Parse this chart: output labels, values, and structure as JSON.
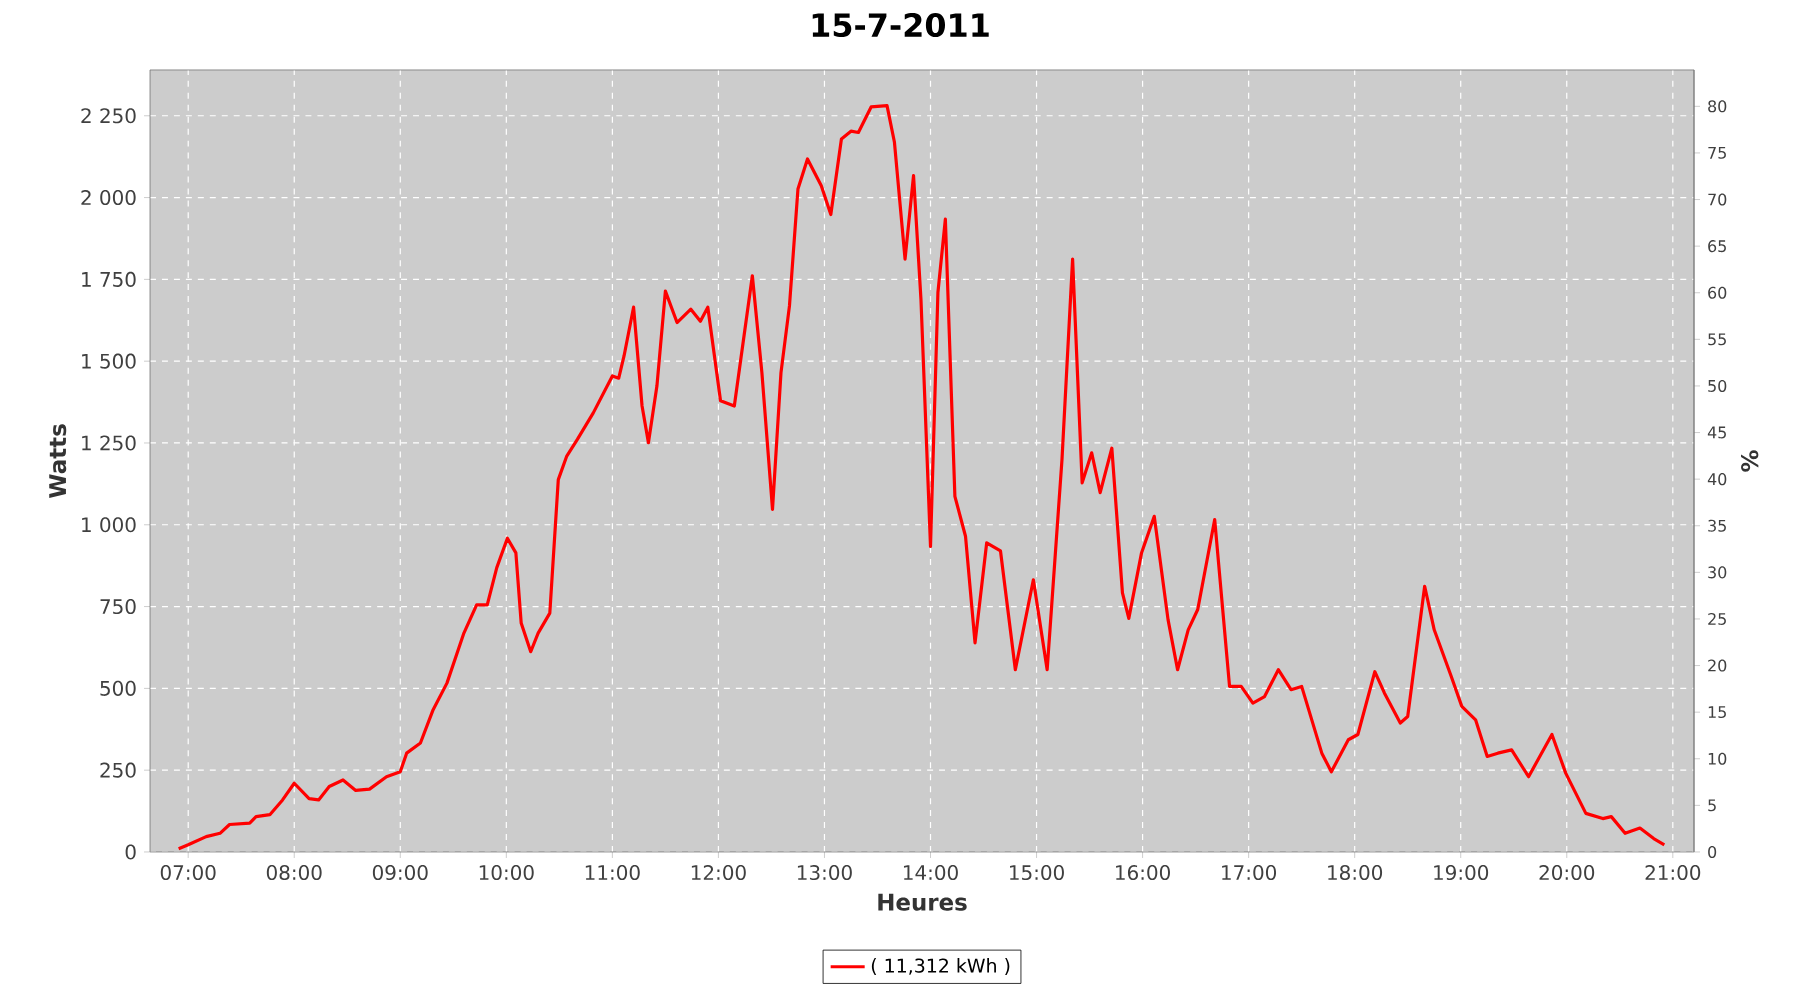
{
  "chart_data": {
    "type": "line",
    "title": "15-7-2011",
    "xlabel": "Heures",
    "ylabel": "Watts",
    "y2label": "%",
    "x": [
      6.91,
      7.0,
      7.17,
      7.3,
      7.39,
      7.58,
      7.64,
      7.77,
      7.89,
      8.0,
      8.14,
      8.23,
      8.33,
      8.46,
      8.58,
      8.71,
      8.87,
      9.0,
      9.06,
      9.19,
      9.31,
      9.44,
      9.6,
      9.72,
      9.82,
      9.91,
      10.01,
      10.09,
      10.14,
      10.23,
      10.3,
      10.41,
      10.49,
      10.57,
      10.67,
      10.82,
      11.0,
      11.06,
      11.11,
      11.2,
      11.28,
      11.34,
      11.42,
      11.5,
      11.61,
      11.74,
      11.83,
      11.9,
      12.02,
      12.15,
      12.32,
      12.41,
      12.51,
      12.59,
      12.67,
      12.75,
      12.84,
      12.97,
      13.06,
      13.16,
      13.25,
      13.32,
      13.44,
      13.59,
      13.66,
      13.76,
      13.84,
      13.91,
      14.0,
      14.07,
      14.14,
      14.23,
      14.33,
      14.42,
      14.53,
      14.66,
      14.8,
      14.97,
      15.1,
      15.24,
      15.34,
      15.43,
      15.52,
      15.6,
      15.71,
      15.81,
      15.87,
      15.99,
      16.11,
      16.24,
      16.33,
      16.43,
      16.52,
      16.68,
      16.82,
      16.93,
      17.04,
      17.15,
      17.28,
      17.4,
      17.5,
      17.69,
      17.78,
      17.94,
      18.03,
      18.19,
      18.28,
      18.43,
      18.5,
      18.66,
      18.75,
      18.91,
      19.01,
      19.14,
      19.25,
      19.35,
      19.48,
      19.64,
      19.86,
      19.99,
      20.18,
      20.34,
      20.42,
      20.55,
      20.69,
      20.82,
      20.92
    ],
    "series": [
      {
        "name": "( 11,312 kWh )",
        "color": "#ff0000",
        "values": [
          10,
          22,
          47,
          57,
          84,
          88,
          108,
          114,
          159,
          210,
          163,
          159,
          200,
          220,
          188,
          192,
          230,
          245,
          302,
          333,
          435,
          516,
          669,
          755,
          755,
          869,
          959,
          914,
          700,
          612,
          669,
          730,
          1138,
          1210,
          1261,
          1342,
          1455,
          1448,
          1516,
          1665,
          1363,
          1251,
          1424,
          1714,
          1618,
          1659,
          1622,
          1665,
          1379,
          1363,
          1761,
          1465,
          1047,
          1465,
          1669,
          2026,
          2118,
          2036,
          1948,
          2179,
          2203,
          2199,
          2277,
          2281,
          2169,
          1812,
          2067,
          1689,
          934,
          1710,
          1934,
          1087,
          965,
          639,
          945,
          920,
          557,
          832,
          557,
          1200,
          1812,
          1128,
          1220,
          1098,
          1234,
          792,
          714,
          914,
          1026,
          710,
          557,
          679,
          741,
          1016,
          506,
          506,
          455,
          475,
          557,
          496,
          506,
          302,
          245,
          343,
          359,
          551,
          486,
          394,
          414,
          812,
          679,
          537,
          445,
          404,
          292,
          302,
          312,
          230,
          359,
          241,
          118,
          102,
          108,
          57,
          73,
          41,
          22
        ]
      }
    ],
    "xlim": [
      6.64,
      21.2
    ],
    "ylim": [
      0,
      2390
    ],
    "y2lim": [
      0,
      83.9
    ],
    "xticks": [
      {
        "value": 7,
        "label": "07:00"
      },
      {
        "value": 8,
        "label": "08:00"
      },
      {
        "value": 9,
        "label": "09:00"
      },
      {
        "value": 10,
        "label": "10:00"
      },
      {
        "value": 11,
        "label": "11:00"
      },
      {
        "value": 12,
        "label": "12:00"
      },
      {
        "value": 13,
        "label": "13:00"
      },
      {
        "value": 14,
        "label": "14:00"
      },
      {
        "value": 15,
        "label": "15:00"
      },
      {
        "value": 16,
        "label": "16:00"
      },
      {
        "value": 17,
        "label": "17:00"
      },
      {
        "value": 18,
        "label": "18:00"
      },
      {
        "value": 19,
        "label": "19:00"
      },
      {
        "value": 20,
        "label": "20:00"
      },
      {
        "value": 21,
        "label": "21:00"
      }
    ],
    "yticks": [
      0,
      250,
      500,
      750,
      {
        "value": 1000,
        "label": "1 000"
      },
      {
        "value": 1250,
        "label": "1 250"
      },
      {
        "value": 1500,
        "label": "1 500"
      },
      {
        "value": 1750,
        "label": "1 750"
      },
      {
        "value": 2000,
        "label": "2 000"
      },
      {
        "value": 2250,
        "label": "2 250"
      }
    ],
    "y2ticks": [
      0,
      5,
      10,
      15,
      20,
      25,
      30,
      35,
      40,
      45,
      50,
      55,
      60,
      65,
      70,
      75,
      80
    ],
    "grid": true,
    "legend": "bottom",
    "marker": "none",
    "line_style": "solid"
  }
}
